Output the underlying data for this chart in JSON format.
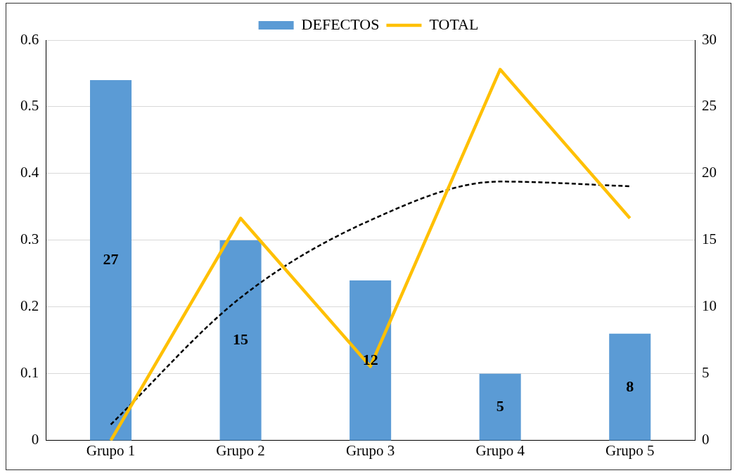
{
  "chart_data": {
    "type": "bar",
    "categories": [
      "Grupo 1",
      "Grupo 2",
      "Grupo 3",
      "Grupo 4",
      "Grupo 5"
    ],
    "series": [
      {
        "name": "DEFECTOS",
        "axis": "y2",
        "color": "#5b9bd5",
        "values": [
          27,
          15,
          12,
          5,
          8
        ],
        "value_labels": [
          "27",
          "15",
          "12",
          "5",
          "8"
        ]
      },
      {
        "name": "TOTAL",
        "type": "line",
        "color": "#ffc000",
        "values": [
          0,
          0.333,
          0.111,
          0.556,
          0.333
        ]
      },
      {
        "type": "line",
        "color": "#000000",
        "line_style": "dashed",
        "values": [
          0.024,
          0.214,
          0.33,
          0.388,
          0.381
        ]
      }
    ],
    "ylim": [
      0,
      0.6
    ],
    "yticks": [
      0,
      0.1,
      0.2,
      0.3,
      0.4,
      0.5,
      0.6
    ],
    "y2lim": [
      0,
      30
    ],
    "y2ticks": [
      0,
      5,
      10,
      15,
      20,
      25,
      30
    ],
    "grid": "y",
    "legend": "top",
    "marker": "none"
  }
}
